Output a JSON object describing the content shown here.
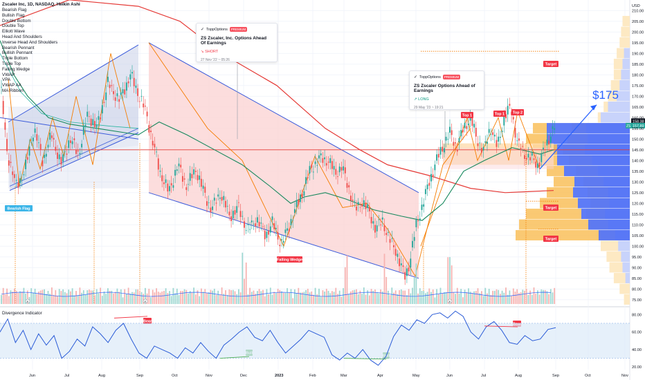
{
  "header": {
    "title": "Zscaler Inc, 1D, NASDAQ, Heikin Ashi",
    "indicators": [
      "Bearish Flag",
      "Bullish Flag",
      "Double Bottom",
      "Double Top",
      "Elliott Wave",
      "Head And Shoulders",
      "Inverse Head And Shoulders",
      "Bearish Pennant",
      "Bullish Pennant",
      "Triple Bottom",
      "Triple Top",
      "Falling Wedge",
      "VWAP",
      "VPA",
      "VWAP AA",
      "MA Ribbon"
    ]
  },
  "colors": {
    "up": "#26a69a",
    "down": "#ef5350",
    "blue": "#2962ff",
    "line_blue": "#3b5bdb",
    "ema_green": "#15885c",
    "ma_red": "#e53935",
    "orange": "#f57c00",
    "wedge_fill": "#fbd5d5",
    "flag_fill": "#c9d0e8",
    "target_red": "#f23645",
    "vp_blue": "#4c6ef5",
    "vp_orange": "#f9c05a",
    "osc_band": "#dbeaf8"
  },
  "cards": [
    {
      "brand": "ToppOptions",
      "badge": "PREMIUM",
      "title": "ZS Zscaler, Inc. Options Ahead Of Earnings",
      "signal": "SHORT",
      "signal_icon": "trend-down-icon",
      "date": "27 Nov '22 ~ 05:26"
    },
    {
      "brand": "ToppOptions",
      "badge": "PREMIUM",
      "title": "ZS Zscaler Options Ahead of Earnings",
      "signal": "LONG",
      "signal_icon": "trend-up-icon",
      "date": "29 May '23 ~ 19:21"
    }
  ],
  "labels": {
    "bearish_flag": "Bearish Flag",
    "falling_wedge": "Falling Wedge",
    "top1": "Top 1",
    "top1b": "Top 1",
    "top2": "Top 2",
    "target": "Target",
    "target2": "Target",
    "target3": "Target",
    "projection": "$175",
    "bear": "Bear",
    "bear2": "Bear",
    "bull": "Bull",
    "bull2": "Bull",
    "osc_title": "Divergence Indicator",
    "price_badge": "158.38",
    "price_badge2": "157.89",
    "price_badge2_prefix": "ZS"
  },
  "chart_data": [
    {
      "type": "candlestick",
      "title": "Zscaler Inc, 1D, NASDAQ, Heikin Ashi",
      "currency": "USD",
      "ylim": [
        73,
        213
      ],
      "y_ticks": [
        75,
        80,
        85,
        90,
        95,
        100,
        105,
        110,
        115,
        120,
        125,
        130,
        135,
        140,
        145,
        150,
        155,
        160,
        165,
        170,
        175,
        180,
        185,
        190,
        195,
        200,
        205,
        210
      ],
      "x_ticks": [
        "Jun",
        "Jul",
        "Aug",
        "Sep",
        "Oct",
        "Nov",
        "Dec",
        "2023",
        "Feb",
        "Mar",
        "Apr",
        "May",
        "Jun",
        "Jul",
        "Aug",
        "Sep",
        "Oct",
        "Nov"
      ],
      "price_path": [
        [
          0,
          178
        ],
        [
          6,
          145
        ],
        [
          14,
          128
        ],
        [
          22,
          135
        ],
        [
          30,
          155
        ],
        [
          38,
          140
        ],
        [
          46,
          152
        ],
        [
          54,
          138
        ],
        [
          62,
          150
        ],
        [
          70,
          143
        ],
        [
          78,
          162
        ],
        [
          86,
          155
        ],
        [
          96,
          176
        ],
        [
          106,
          168
        ],
        [
          116,
          180
        ],
        [
          124,
          170
        ],
        [
          130,
          162
        ],
        [
          136,
          148
        ],
        [
          142,
          135
        ],
        [
          150,
          125
        ],
        [
          158,
          138
        ],
        [
          166,
          128
        ],
        [
          174,
          136
        ],
        [
          182,
          124
        ],
        [
          188,
          117
        ],
        [
          196,
          125
        ],
        [
          204,
          114
        ],
        [
          212,
          118
        ],
        [
          220,
          107
        ],
        [
          228,
          113
        ],
        [
          236,
          105
        ],
        [
          242,
          111
        ],
        [
          250,
          101
        ],
        [
          256,
          108
        ],
        [
          260,
          114
        ],
        [
          268,
          124
        ],
        [
          276,
          136
        ],
        [
          284,
          141
        ],
        [
          292,
          140
        ],
        [
          298,
          134
        ],
        [
          304,
          137
        ],
        [
          310,
          127
        ],
        [
          316,
          117
        ],
        [
          322,
          121
        ],
        [
          328,
          116
        ],
        [
          334,
          108
        ],
        [
          340,
          112
        ],
        [
          346,
          103
        ],
        [
          352,
          98
        ],
        [
          356,
          91
        ],
        [
          360,
          86
        ],
        [
          364,
          92
        ],
        [
          370,
          110
        ],
        [
          376,
          120
        ],
        [
          382,
          131
        ],
        [
          388,
          140
        ],
        [
          394,
          147
        ],
        [
          400,
          153
        ],
        [
          406,
          146
        ],
        [
          412,
          155
        ],
        [
          418,
          160
        ],
        [
          424,
          150
        ],
        [
          430,
          144
        ],
        [
          436,
          156
        ],
        [
          442,
          146
        ],
        [
          448,
          160
        ],
        [
          454,
          165
        ],
        [
          460,
          148
        ],
        [
          466,
          143
        ],
        [
          472,
          141
        ],
        [
          478,
          138
        ],
        [
          484,
          145
        ],
        [
          490,
          153
        ],
        [
          494,
          157
        ]
      ],
      "volume_scale_max": 100,
      "bearish_flag": {
        "pole_top": 178,
        "pole_bottom": 128
      },
      "falling_wedge": {
        "upper_start": 195,
        "upper_end": 125,
        "lower_start": 125,
        "lower_end": 85
      },
      "tops": [
        {
          "label": "Top 1",
          "value": 160
        },
        {
          "label": "Top 1",
          "value": 160
        },
        {
          "label": "Top 2",
          "value": 160
        }
      ],
      "targets": [
        {
          "label": "Target",
          "value": 191
        },
        {
          "label": "Target",
          "value": 121
        },
        {
          "label": "Target",
          "value": 108
        }
      ],
      "projection": {
        "label": "$175",
        "from": 136,
        "to": 166
      },
      "resistance": 145,
      "last_price": 158.38,
      "last_price_alt": 157.89
    },
    {
      "type": "line",
      "title": "Divergence Indicator",
      "ylim": [
        17,
        85
      ],
      "y_ticks": [
        20,
        40,
        60,
        80
      ],
      "band": [
        30,
        70
      ],
      "values": [
        60,
        75,
        48,
        62,
        40,
        58,
        45,
        56,
        30,
        38,
        52,
        44,
        66,
        58,
        48,
        62,
        70,
        52,
        36,
        30,
        44,
        40,
        36,
        30,
        42,
        36,
        48,
        38,
        30,
        45,
        52,
        60,
        66,
        54,
        50,
        62,
        48,
        36,
        44,
        52,
        62,
        58,
        54,
        34,
        28,
        36,
        30,
        40,
        28,
        22,
        32,
        55,
        68,
        62,
        74,
        70,
        80,
        82,
        76,
        84,
        78,
        60,
        52,
        66,
        72,
        62,
        48,
        46,
        56,
        50,
        52,
        63,
        65
      ],
      "divergences": [
        {
          "label": "Bear",
          "value": 78
        },
        {
          "label": "Bull",
          "value": 30
        },
        {
          "label": "Bull",
          "value": 28
        },
        {
          "label": "Bear",
          "value": 67
        }
      ]
    }
  ]
}
